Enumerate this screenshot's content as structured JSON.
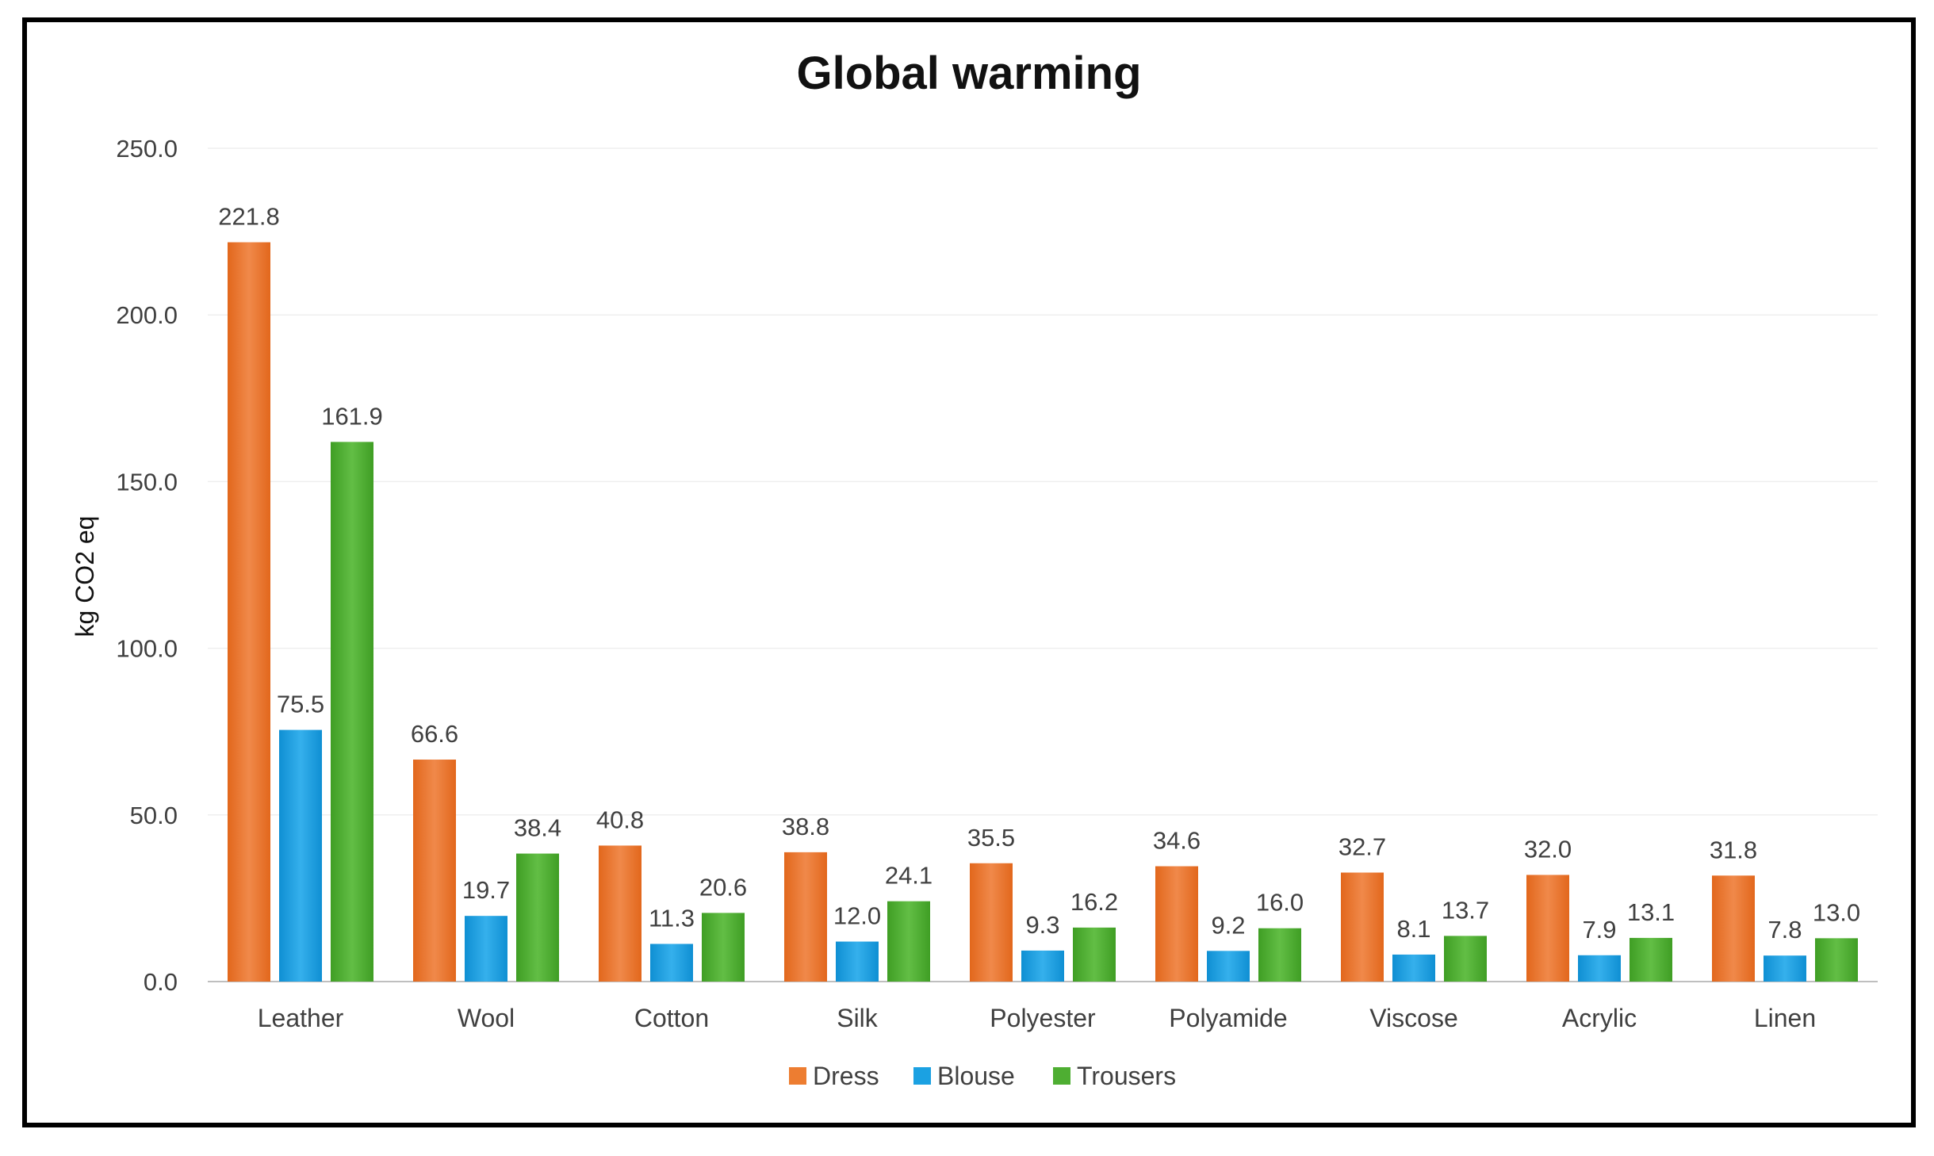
{
  "colors": {
    "Dress": "#ED7D31",
    "Blouse": "#1BA1E2",
    "Trousers": "#4EAE32"
  },
  "chart_data": {
    "type": "bar",
    "title": "Global warming",
    "xlabel": "",
    "ylabel": "kg CO2 eq",
    "ylim": [
      0,
      250
    ],
    "yticks": [
      "0.0",
      "50.0",
      "100.0",
      "150.0",
      "200.0",
      "250.0"
    ],
    "grid": true,
    "legend_position": "bottom",
    "categories": [
      "Leather",
      "Wool",
      "Cotton",
      "Silk",
      "Polyester",
      "Polyamide",
      "Viscose",
      "Acrylic",
      "Linen"
    ],
    "series": [
      {
        "name": "Dress",
        "values": [
          221.8,
          66.6,
          40.8,
          38.8,
          35.5,
          34.6,
          32.7,
          32.0,
          31.8
        ]
      },
      {
        "name": "Blouse",
        "values": [
          75.5,
          19.7,
          11.3,
          12.0,
          9.3,
          9.2,
          8.1,
          7.9,
          7.8
        ]
      },
      {
        "name": "Trousers",
        "values": [
          161.9,
          38.4,
          20.6,
          24.1,
          16.2,
          16.0,
          13.7,
          13.1,
          13.0
        ]
      }
    ]
  }
}
